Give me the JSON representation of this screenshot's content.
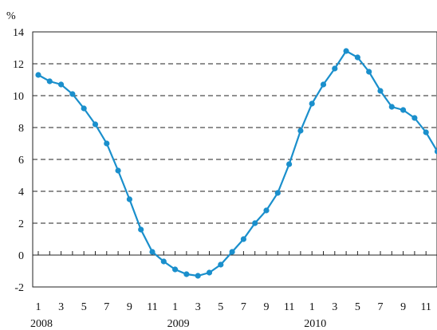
{
  "chart_data": {
    "type": "line",
    "y_unit": "%",
    "ylim": [
      -2,
      14
    ],
    "yticks": [
      -2,
      0,
      2,
      4,
      6,
      8,
      10,
      12,
      14
    ],
    "grid": "horizontal dashed",
    "x_tick_labels": [
      "1",
      "3",
      "5",
      "7",
      "9",
      "11",
      "1",
      "3",
      "5",
      "7",
      "9",
      "11",
      "1",
      "3",
      "5",
      "7",
      "9",
      "11"
    ],
    "year_labels": [
      {
        "label": "2008",
        "month_index": 1
      },
      {
        "label": "2009",
        "month_index": 13
      },
      {
        "label": "2010",
        "month_index": 25
      }
    ],
    "series": [
      {
        "values": [
          11.3,
          10.9,
          10.7,
          10.1,
          9.2,
          8.2,
          7.0,
          5.3,
          3.5,
          1.6,
          0.2,
          -0.4,
          -0.9,
          -1.2,
          -1.3,
          -1.1,
          -0.6,
          0.2,
          1.0,
          2.0,
          2.8,
          3.9,
          5.7,
          7.8,
          9.5,
          10.7,
          11.7,
          12.8,
          12.4,
          11.5,
          10.3,
          9.3,
          9.1,
          8.6,
          7.7,
          6.5
        ],
        "color": "#1a8fcc"
      }
    ]
  }
}
